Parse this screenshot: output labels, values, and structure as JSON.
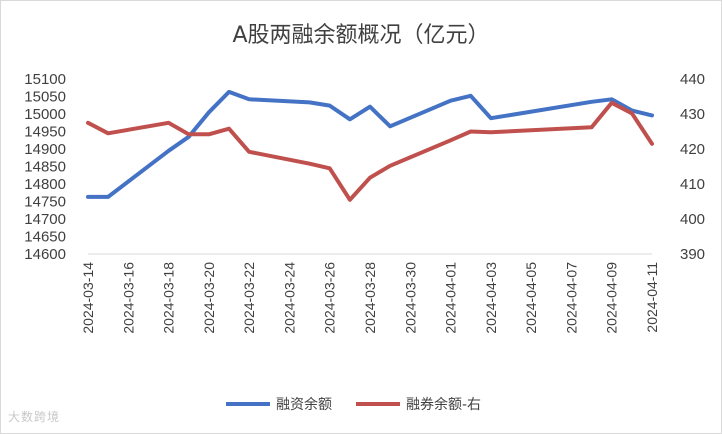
{
  "watermark": "大数跨境",
  "chart_data": {
    "type": "line",
    "title": "A股两融余额概况（亿元）",
    "x": [
      "2024-03-14",
      "2024-03-15",
      "2024-03-18",
      "2024-03-19",
      "2024-03-20",
      "2024-03-21",
      "2024-03-22",
      "2024-03-25",
      "2024-03-26",
      "2024-03-27",
      "2024-03-28",
      "2024-03-29",
      "2024-04-01",
      "2024-04-02",
      "2024-04-03",
      "2024-04-08",
      "2024-04-09",
      "2024-04-10",
      "2024-04-11"
    ],
    "x_ticks": [
      "2024-03-14",
      "2024-03-16",
      "2024-03-18",
      "2024-03-20",
      "2024-03-22",
      "2024-03-24",
      "2024-03-26",
      "2024-03-28",
      "2024-03-30",
      "2024-04-01",
      "2024-04-03",
      "2024-04-05",
      "2024-04-07",
      "2024-04-09",
      "2024-04-11"
    ],
    "y_left": {
      "ticks": [
        14600,
        14650,
        14700,
        14750,
        14800,
        14850,
        14900,
        14950,
        15000,
        15050,
        15100
      ],
      "ylim": [
        14600,
        15100
      ]
    },
    "y_right": {
      "ticks": [
        390,
        400,
        410,
        420,
        430,
        440
      ],
      "ylim": [
        390,
        440
      ]
    },
    "series": [
      {
        "name": "融资余额",
        "axis": "left",
        "color": "#4472C4",
        "values": [
          14763,
          14763,
          14895,
          14935,
          15005,
          15063,
          15042,
          15033,
          15024,
          14985,
          15021,
          14965,
          15038,
          15052,
          14988,
          15035,
          15042,
          15010,
          14996
        ]
      },
      {
        "name": "融券余额-右",
        "axis": "right",
        "color": "#C0504D",
        "values": [
          427.5,
          424.5,
          427.5,
          424.2,
          424.2,
          425.8,
          419.2,
          415.8,
          414.5,
          405.5,
          411.8,
          415.2,
          422.5,
          425.0,
          424.8,
          426.2,
          433.2,
          430.2,
          421.5
        ]
      }
    ],
    "legend_position": "bottom",
    "grid": false
  }
}
